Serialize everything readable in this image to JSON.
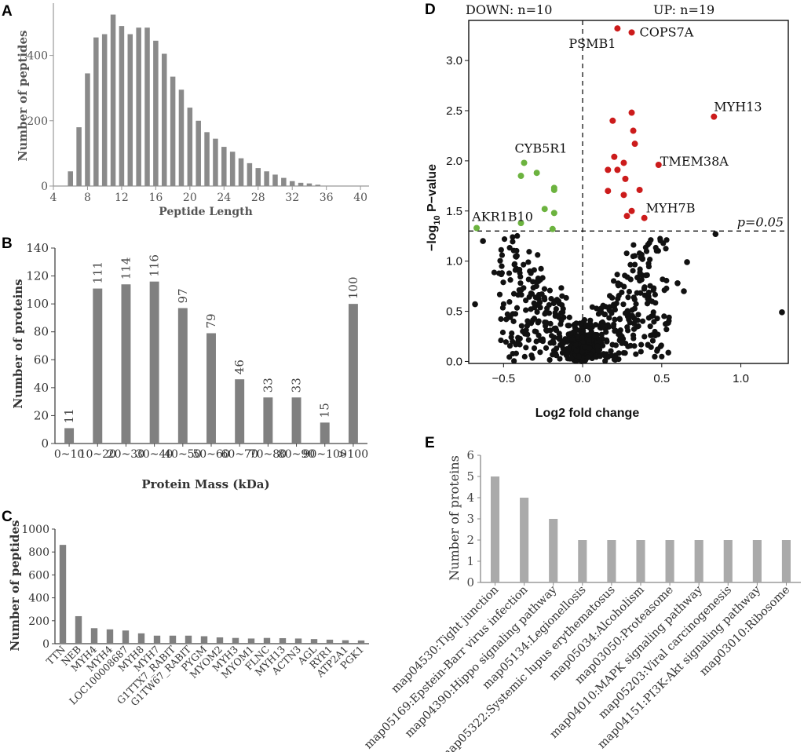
{
  "panels": {
    "A": {
      "label": "A",
      "chart_data": {
        "type": "bar",
        "title": "",
        "xlabel": "Peptide Length",
        "ylabel": "Number of peptides",
        "x": [
          6,
          7,
          8,
          9,
          10,
          11,
          12,
          13,
          14,
          15,
          16,
          17,
          18,
          19,
          20,
          21,
          22,
          23,
          24,
          25,
          26,
          27,
          28,
          29,
          30,
          31,
          32,
          33,
          34,
          35
        ],
        "values": [
          45,
          180,
          345,
          455,
          465,
          525,
          490,
          465,
          485,
          485,
          445,
          405,
          335,
          295,
          240,
          200,
          165,
          145,
          120,
          105,
          85,
          70,
          55,
          45,
          35,
          25,
          15,
          10,
          8,
          4
        ],
        "xticks": [
          "4",
          "8",
          "12",
          "16",
          "20",
          "24",
          "28",
          "32",
          "36",
          "40"
        ],
        "xtick_values": [
          4,
          8,
          12,
          16,
          20,
          24,
          28,
          32,
          36,
          40
        ],
        "yticks": [
          "0",
          "200",
          "400"
        ],
        "ytick_values": [
          0,
          200,
          400
        ],
        "xlim": [
          4,
          41
        ],
        "ylim": [
          0,
          560
        ]
      }
    },
    "B": {
      "label": "B",
      "chart_data": {
        "type": "bar",
        "xlabel": "Protein Mass (kDa)",
        "ylabel": "Number of proteins",
        "categories": [
          "0~10",
          "10~20",
          "20~30",
          "30~40",
          "40~50",
          "50~60",
          "60~70",
          "70~80",
          "80~90",
          "90~100",
          ">100"
        ],
        "values": [
          11,
          111,
          114,
          116,
          97,
          79,
          46,
          33,
          33,
          15,
          100
        ],
        "data_labels": [
          "11",
          "111",
          "114",
          "116",
          "97",
          "79",
          "46",
          "33",
          "33",
          "15",
          "100"
        ],
        "yticks": [
          "0",
          "20",
          "40",
          "60",
          "80",
          "100",
          "120",
          "140"
        ],
        "ytick_values": [
          0,
          20,
          40,
          60,
          80,
          100,
          120,
          140
        ],
        "ylim": [
          0,
          140
        ]
      }
    },
    "C": {
      "label": "C",
      "chart_data": {
        "type": "bar",
        "xlabel": "",
        "ylabel": "Number of peptides",
        "categories": [
          "TTN",
          "NEB",
          "MYH4",
          "MYH4",
          "LOC100008687",
          "MYH8",
          "MYH7",
          "G1TTX7_RABIT",
          "G1TW67_RABIT",
          "PYGM",
          "MYOM2",
          "MYH3",
          "MYOM1",
          "FLNC",
          "MYH13",
          "ACTN3",
          "AGL",
          "RYR1",
          "ATP2A1",
          "PGK1"
        ],
        "values": [
          862,
          240,
          135,
          125,
          115,
          90,
          70,
          70,
          70,
          65,
          55,
          50,
          45,
          50,
          48,
          45,
          40,
          35,
          30,
          28
        ],
        "yticks": [
          "0",
          "200",
          "400",
          "600",
          "800",
          "1000"
        ],
        "ytick_values": [
          0,
          200,
          400,
          600,
          800,
          1000
        ],
        "ylim": [
          0,
          1000
        ]
      }
    },
    "D": {
      "label": "D",
      "header_down": "DOWN: n=10",
      "header_up": "UP: n=19",
      "threshold_label": "p=0.05",
      "chart_data": {
        "type": "scatter",
        "xlabel": "Log2 fold change",
        "ylabel_main": "−log",
        "ylabel_sub": "10",
        "ylabel_tail": " P−value",
        "xlim": [
          -0.72,
          1.3
        ],
        "ylim": [
          -0.02,
          3.4
        ],
        "xticks": [
          "−0.5",
          "0.0",
          "0.5",
          "1.0"
        ],
        "xtick_values": [
          -0.5,
          0,
          0.5,
          1.0
        ],
        "yticks": [
          "0.0",
          "0.5",
          "1.0",
          "1.5",
          "2.0",
          "2.5",
          "3.0"
        ],
        "ytick_values": [
          0,
          0.5,
          1.0,
          1.5,
          2.0,
          2.5,
          3.0
        ],
        "threshold": 1.3,
        "colors": {
          "up": "#cc1b1b",
          "down": "#6cb33f",
          "ns": "#111111"
        },
        "up_points": [
          [
            0.22,
            3.32
          ],
          [
            0.31,
            3.28
          ],
          [
            0.83,
            2.44
          ],
          [
            0.31,
            2.48
          ],
          [
            0.19,
            2.4
          ],
          [
            0.32,
            2.3
          ],
          [
            0.33,
            2.17
          ],
          [
            0.48,
            1.96
          ],
          [
            0.2,
            2.04
          ],
          [
            0.26,
            1.98
          ],
          [
            0.16,
            1.91
          ],
          [
            0.22,
            1.91
          ],
          [
            0.27,
            1.82
          ],
          [
            0.36,
            1.71
          ],
          [
            0.16,
            1.7
          ],
          [
            0.26,
            1.66
          ],
          [
            0.31,
            1.5
          ],
          [
            0.39,
            1.43
          ],
          [
            0.28,
            1.45
          ]
        ],
        "down_points": [
          [
            -0.37,
            1.98
          ],
          [
            -0.39,
            1.85
          ],
          [
            -0.29,
            1.88
          ],
          [
            -0.18,
            1.73
          ],
          [
            -0.18,
            1.71
          ],
          [
            -0.24,
            1.52
          ],
          [
            -0.18,
            1.48
          ],
          [
            -0.67,
            1.33
          ],
          [
            -0.39,
            1.38
          ],
          [
            -0.19,
            1.32
          ]
        ],
        "ns_extra_points": [
          [
            0.84,
            1.27
          ],
          [
            1.26,
            0.49
          ],
          [
            -0.68,
            0.57
          ],
          [
            -0.63,
            1.2
          ],
          [
            0.66,
            0.99
          ],
          [
            0.6,
            0.78
          ],
          [
            0.64,
            0.7
          ]
        ],
        "annotations": [
          {
            "text": "PSMB1",
            "x": 0.22,
            "y": 3.32
          },
          {
            "text": "COPS7A",
            "x": 0.31,
            "y": 3.28
          },
          {
            "text": "MYH13",
            "x": 0.83,
            "y": 2.44
          },
          {
            "text": "TMEM38A",
            "x": 0.48,
            "y": 1.96
          },
          {
            "text": "MYH7B",
            "x": 0.39,
            "y": 1.43
          },
          {
            "text": "CYB5R1",
            "x": -0.37,
            "y": 1.98
          },
          {
            "text": "AKR1B10",
            "x": -0.67,
            "y": 1.33
          }
        ]
      }
    },
    "E": {
      "label": "E",
      "chart_data": {
        "type": "bar",
        "xlabel": "",
        "ylabel": "Number of proteins",
        "categories": [
          "map04530:Tight junction",
          "map05169:Epstein-Barr virus infection",
          "map04390:Hippo signaling pathway",
          "map05134:Legionellosis",
          "map05322:Systemic lupus erythematosus",
          "map05034:Alcoholism",
          "map03050:Proteasome",
          "map04010:MAPK signaling pathway",
          "map05203:Viral carcinogenesis",
          "map04151:PI3K-Akt signaling pathway",
          "map03010:Ribosome"
        ],
        "values": [
          5,
          4,
          3,
          2,
          2,
          2,
          2,
          2,
          2,
          2,
          2
        ],
        "yticks": [
          "0",
          "1",
          "2",
          "3",
          "4",
          "5",
          "6"
        ],
        "ytick_values": [
          0,
          1,
          2,
          3,
          4,
          5,
          6
        ],
        "ylim": [
          0,
          6
        ]
      }
    }
  }
}
